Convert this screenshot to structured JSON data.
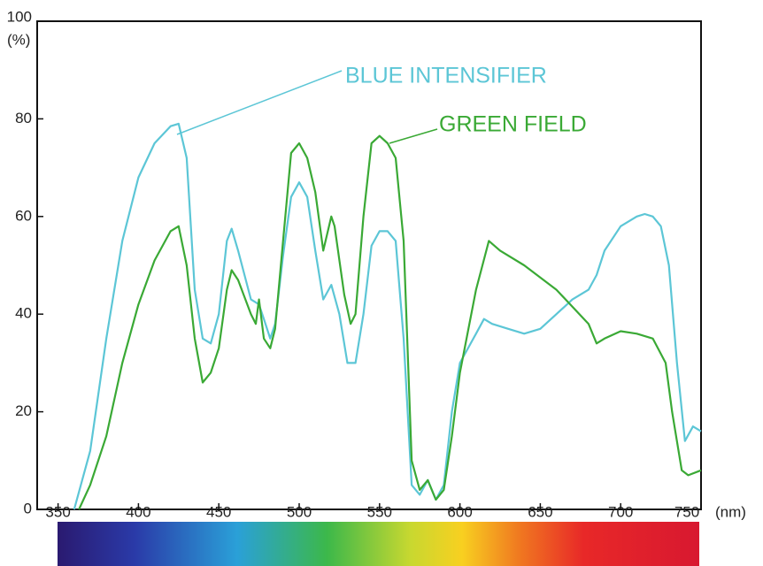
{
  "chart_data": {
    "type": "line",
    "x_unit": "(nm)",
    "y_unit": "(%)",
    "xlim": [
      337,
      750
    ],
    "ylim": [
      0,
      100
    ],
    "xticks": [
      350,
      400,
      450,
      500,
      550,
      600,
      650,
      700,
      750
    ],
    "yticks": [
      0,
      20,
      40,
      60,
      80,
      100
    ],
    "series": [
      {
        "name": "BLUE INTENSIFIER",
        "color": "#5cc6d6",
        "x": [
          360,
          370,
          380,
          390,
          400,
          410,
          420,
          425,
          430,
          435,
          440,
          445,
          450,
          455,
          458,
          462,
          470,
          475,
          478,
          482,
          485,
          490,
          495,
          500,
          505,
          510,
          515,
          520,
          525,
          530,
          535,
          540,
          545,
          550,
          555,
          560,
          565,
          570,
          575,
          580,
          585,
          590,
          595,
          600,
          610,
          615,
          620,
          630,
          640,
          650,
          660,
          670,
          680,
          685,
          690,
          700,
          710,
          715,
          720,
          725,
          730,
          735,
          740,
          745,
          750
        ],
        "values": [
          0,
          12,
          35,
          55,
          68,
          75,
          78.5,
          79,
          72,
          45,
          35,
          34,
          40,
          55,
          57.5,
          53,
          43,
          42,
          39,
          35,
          38,
          52,
          64,
          67,
          64,
          53,
          43,
          46,
          40,
          30,
          30,
          40,
          54,
          57,
          57,
          55,
          35,
          5,
          3,
          6,
          2,
          5,
          20,
          30,
          36,
          39,
          38,
          37,
          36,
          37,
          40,
          43,
          45,
          48,
          53,
          58,
          60,
          60.5,
          60,
          58,
          50,
          30,
          14,
          17,
          16
        ]
      },
      {
        "name": "GREEN FIELD",
        "color": "#3aa935",
        "x": [
          363,
          370,
          380,
          390,
          400,
          410,
          420,
          425,
          430,
          435,
          440,
          445,
          450,
          455,
          458,
          462,
          470,
          473,
          475,
          478,
          482,
          485,
          490,
          495,
          500,
          505,
          510,
          515,
          520,
          522,
          528,
          532,
          535,
          540,
          545,
          550,
          555,
          560,
          565,
          570,
          575,
          580,
          585,
          590,
          595,
          600,
          610,
          618,
          625,
          640,
          660,
          680,
          685,
          690,
          700,
          710,
          720,
          728,
          732,
          738,
          742,
          750
        ],
        "values": [
          0,
          5,
          15,
          30,
          42,
          51,
          57,
          58,
          50,
          35,
          26,
          28,
          33,
          45,
          49,
          47,
          40,
          38,
          43,
          35,
          33,
          37,
          55,
          73,
          75,
          72,
          65,
          53,
          60,
          58,
          44,
          38,
          40,
          60,
          75,
          76.5,
          75,
          72,
          55,
          10,
          4,
          6,
          2,
          4,
          15,
          28,
          45,
          55,
          53,
          50,
          45,
          38,
          34,
          35,
          36.5,
          36,
          35,
          30,
          20,
          8,
          7,
          8
        ]
      }
    ]
  }
}
